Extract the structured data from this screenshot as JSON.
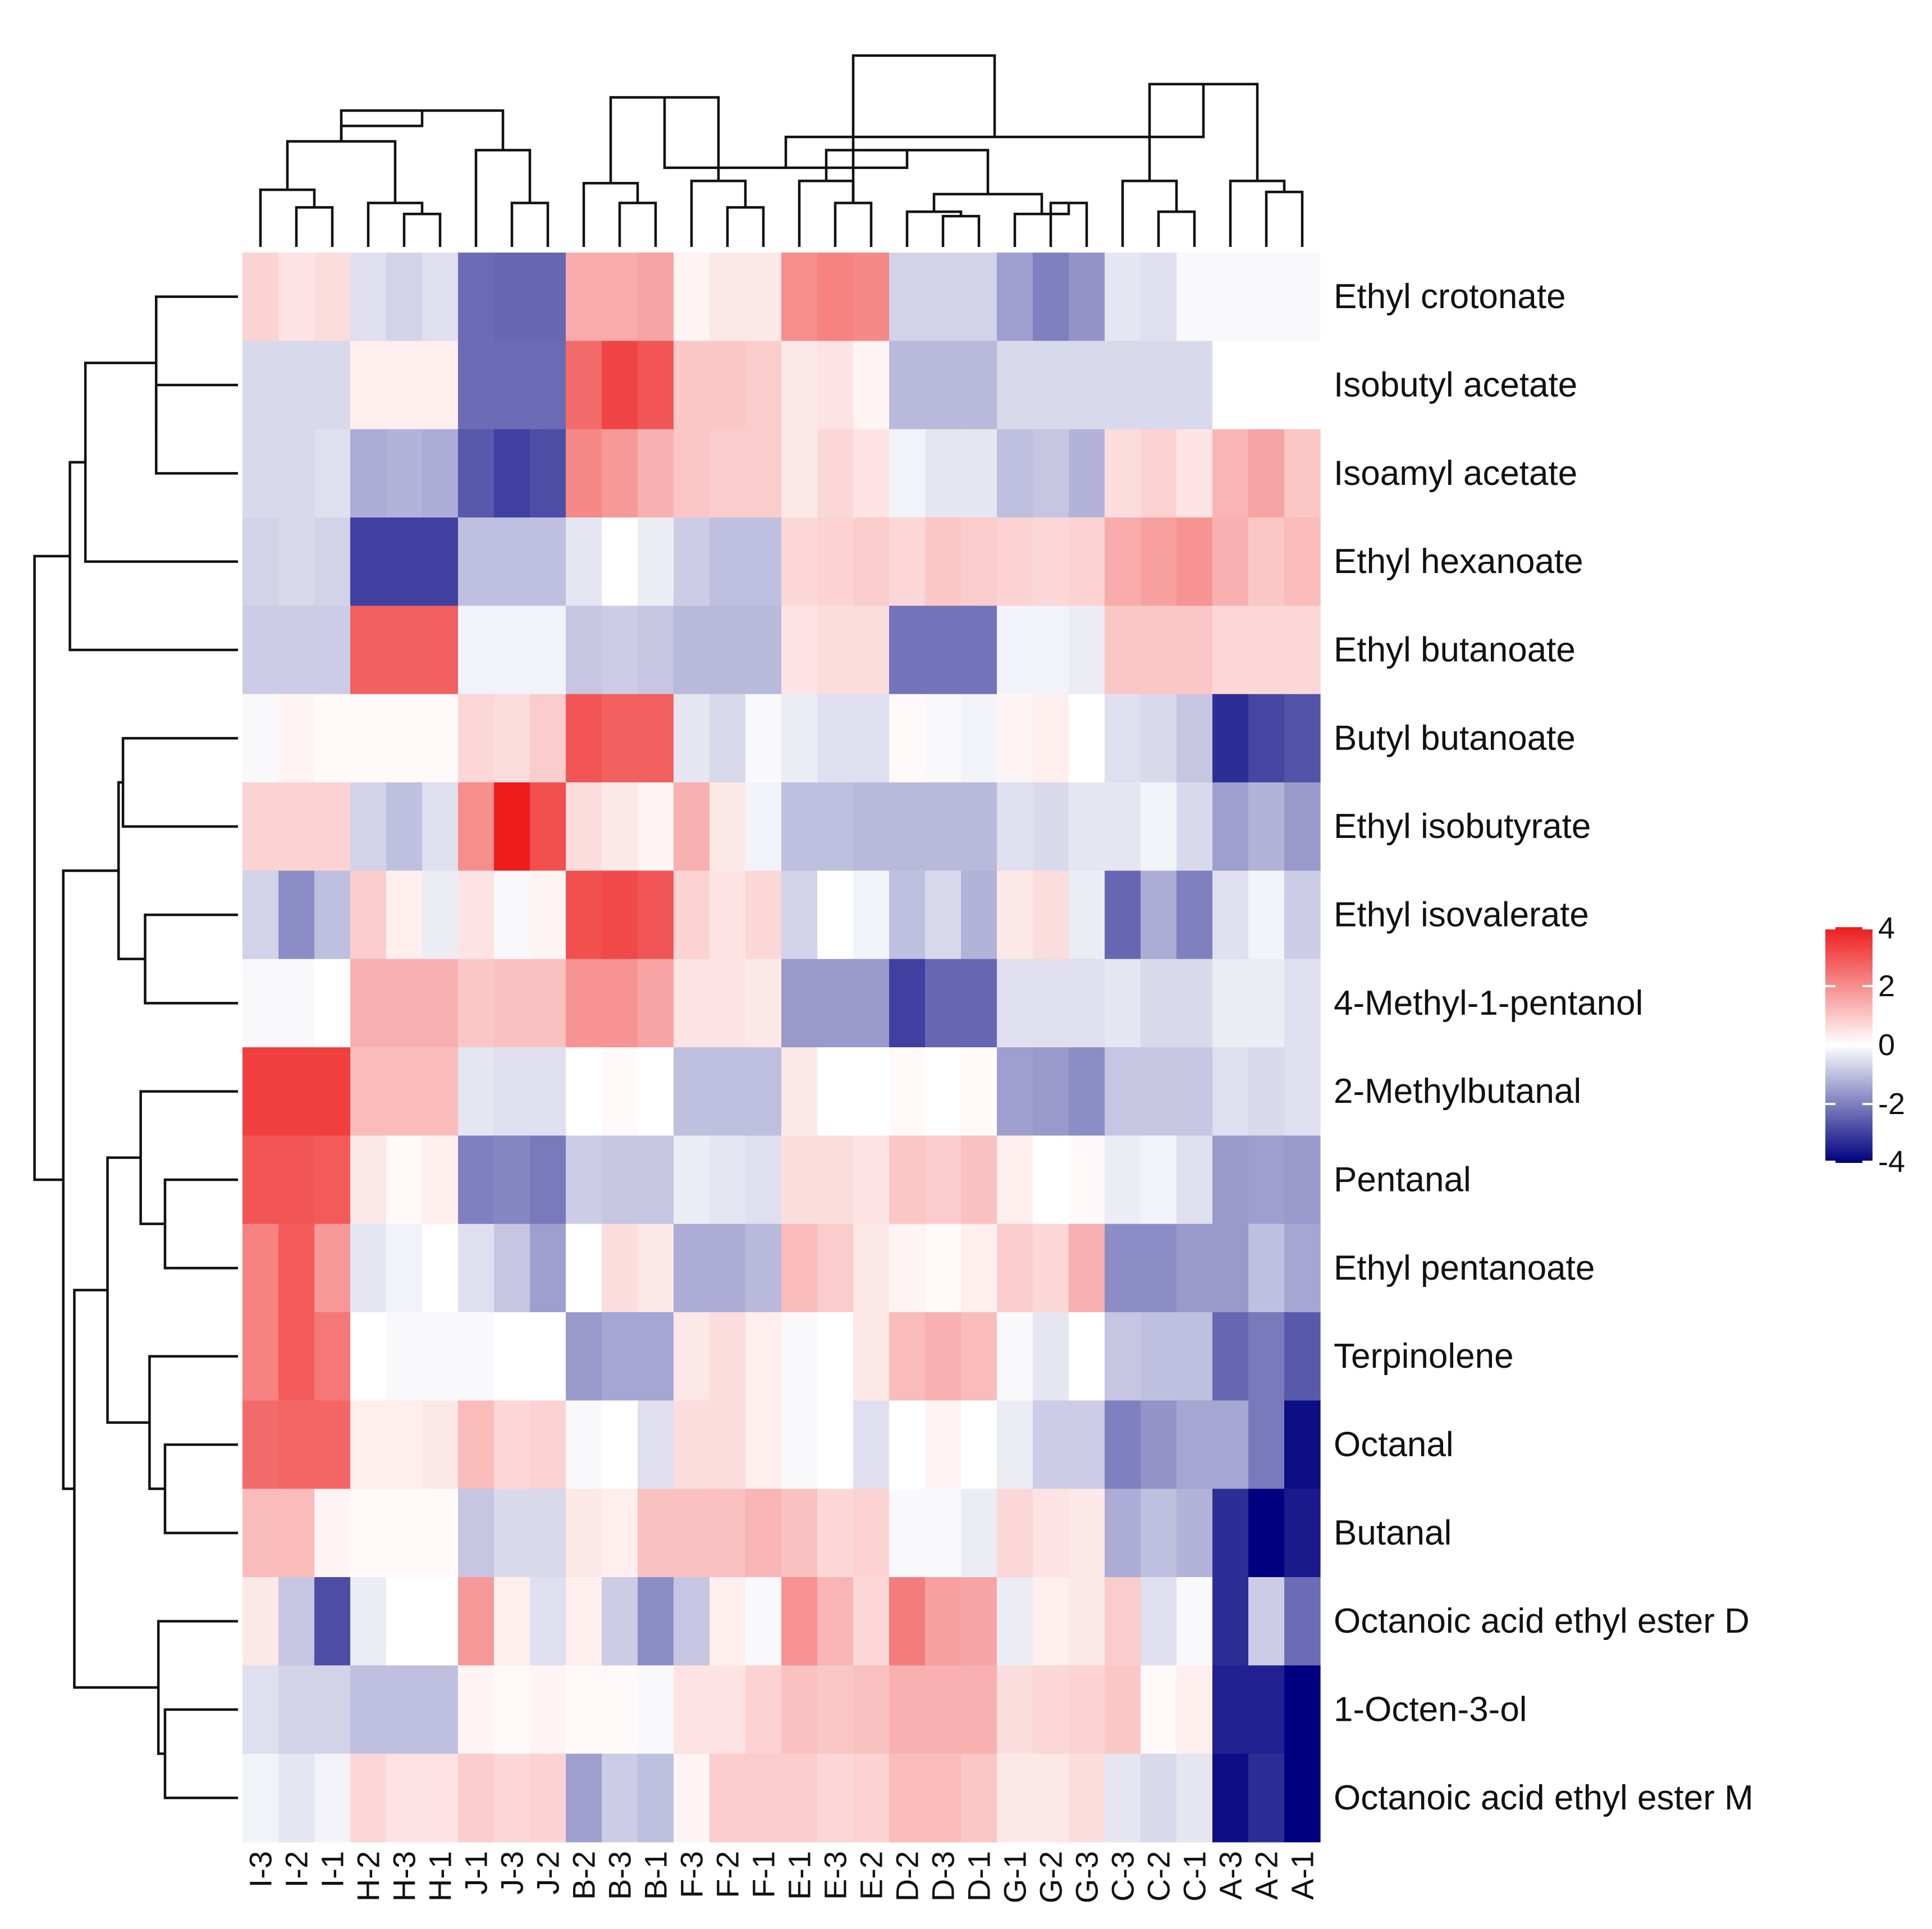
{
  "chart_data": {
    "type": "heatmap",
    "title": "",
    "xlabel": "",
    "ylabel": "",
    "columns": [
      "I-3",
      "I-2",
      "I-1",
      "H-2",
      "H-3",
      "H-1",
      "J-1",
      "J-3",
      "J-2",
      "B-2",
      "B-3",
      "B-1",
      "F-3",
      "F-2",
      "F-1",
      "E-1",
      "E-3",
      "E-2",
      "D-2",
      "D-3",
      "D-1",
      "G-1",
      "G-2",
      "G-3",
      "C-3",
      "C-2",
      "C-1",
      "A-3",
      "A-2",
      "A-1"
    ],
    "rows": [
      "Ethyl crotonate",
      "Isobutyl acetate",
      "Isoamyl acetate",
      "Ethyl hexanoate",
      "Ethyl butanoate",
      "Butyl butanoate",
      "Ethyl isobutyrate",
      "Ethyl isovalerate",
      "4-Methyl-1-pentanol",
      "2-Methylbutanal",
      "Pentanal",
      "Ethyl pentanoate",
      "Terpinolene",
      "Octanal",
      "Butanal",
      "Octanoic acid ethyl ester D",
      "1-Octen-3-ol",
      "Octanoic acid ethyl ester M"
    ],
    "values": [
      [
        0.8,
        0.5,
        0.6,
        -0.5,
        -0.7,
        -0.5,
        -2.3,
        -2.4,
        -2.4,
        1.5,
        1.5,
        1.6,
        0.2,
        0.4,
        0.4,
        2.0,
        2.2,
        2.1,
        -0.7,
        -0.7,
        -0.7,
        -1.5,
        -2.0,
        -1.7,
        -0.4,
        -0.5,
        -0.1,
        -0.1,
        -0.1,
        -0.1
      ],
      [
        -0.6,
        -0.6,
        -0.6,
        0.3,
        0.3,
        0.3,
        -2.3,
        -2.3,
        -2.3,
        2.6,
        3.3,
        3.0,
        1.0,
        1.0,
        0.9,
        0.4,
        0.5,
        0.2,
        -1.1,
        -1.1,
        -1.1,
        -0.6,
        -0.6,
        -0.6,
        -0.6,
        -0.6,
        -0.6,
        0.0,
        0.0,
        0.0
      ],
      [
        -0.6,
        -0.6,
        -0.5,
        -1.3,
        -1.2,
        -1.3,
        -2.6,
        -3.0,
        -2.8,
        2.1,
        1.8,
        1.4,
        1.0,
        0.9,
        0.9,
        0.4,
        0.7,
        0.5,
        -0.2,
        -0.4,
        -0.4,
        -1.0,
        -0.9,
        -1.2,
        0.6,
        0.8,
        0.5,
        1.3,
        1.6,
        1.0
      ],
      [
        -0.7,
        -0.6,
        -0.7,
        -3.0,
        -3.0,
        -3.0,
        -1.0,
        -1.0,
        -1.0,
        -0.4,
        0.0,
        -0.3,
        -0.8,
        -1.0,
        -1.0,
        0.7,
        0.8,
        0.9,
        0.7,
        1.0,
        0.9,
        0.8,
        0.7,
        0.8,
        1.5,
        1.7,
        1.9,
        1.4,
        1.0,
        1.2
      ],
      [
        -0.8,
        -0.8,
        -0.8,
        2.8,
        2.8,
        2.8,
        -0.2,
        -0.2,
        -0.2,
        -0.9,
        -0.8,
        -0.9,
        -1.1,
        -1.1,
        -1.1,
        0.5,
        0.6,
        0.6,
        -2.2,
        -2.2,
        -2.2,
        -0.2,
        -0.2,
        -0.3,
        1.0,
        1.0,
        1.0,
        0.7,
        0.7,
        0.7
      ],
      [
        -0.1,
        0.2,
        0.1,
        0.1,
        0.1,
        0.1,
        0.7,
        0.6,
        0.9,
        3.0,
        2.8,
        2.8,
        -0.4,
        -0.6,
        -0.1,
        -0.3,
        -0.5,
        -0.5,
        0.1,
        -0.1,
        -0.2,
        0.2,
        0.3,
        0.0,
        -0.5,
        -0.6,
        -0.9,
        -3.3,
        -2.9,
        -2.7
      ],
      [
        0.8,
        0.8,
        0.8,
        -0.7,
        -1.0,
        -0.5,
        2.0,
        4.0,
        3.1,
        0.6,
        0.4,
        0.2,
        1.4,
        0.4,
        -0.2,
        -1.0,
        -1.0,
        -1.1,
        -1.1,
        -1.1,
        -1.1,
        -0.5,
        -0.6,
        -0.4,
        -0.4,
        -0.2,
        -0.6,
        -1.5,
        -1.2,
        -1.6
      ],
      [
        -0.7,
        -1.8,
        -1.0,
        0.9,
        0.3,
        -0.3,
        0.5,
        -0.1,
        0.2,
        3.1,
        3.2,
        3.0,
        0.8,
        0.5,
        0.7,
        -0.7,
        0.0,
        -0.2,
        -1.0,
        -0.6,
        -1.2,
        0.4,
        0.6,
        -0.3,
        -2.4,
        -1.3,
        -2.0,
        -0.5,
        -0.2,
        -0.8
      ],
      [
        -0.1,
        -0.1,
        0.0,
        1.4,
        1.4,
        1.4,
        1.0,
        1.1,
        1.1,
        1.9,
        1.9,
        1.6,
        0.5,
        0.5,
        0.4,
        -1.6,
        -1.6,
        -1.6,
        -3.0,
        -2.4,
        -2.4,
        -0.5,
        -0.5,
        -0.5,
        -0.4,
        -0.6,
        -0.6,
        -0.3,
        -0.3,
        -0.5
      ],
      [
        3.4,
        3.4,
        3.4,
        1.2,
        1.2,
        1.2,
        -0.4,
        -0.5,
        -0.5,
        0.0,
        0.1,
        0.0,
        -1.0,
        -1.0,
        -1.0,
        0.4,
        0.0,
        0.0,
        0.1,
        0.0,
        0.1,
        -1.5,
        -1.6,
        -1.8,
        -0.9,
        -0.9,
        -0.9,
        -0.5,
        -0.6,
        -0.5
      ],
      [
        3.0,
        3.0,
        2.9,
        0.4,
        0.1,
        0.3,
        -2.0,
        -1.9,
        -2.1,
        -0.8,
        -0.9,
        -0.9,
        -0.3,
        -0.4,
        -0.5,
        0.6,
        0.6,
        0.5,
        1.0,
        0.9,
        1.1,
        0.3,
        0.0,
        0.1,
        -0.3,
        -0.2,
        -0.5,
        -1.6,
        -1.5,
        -1.6
      ],
      [
        2.2,
        2.9,
        1.8,
        -0.4,
        -0.2,
        0.0,
        -0.5,
        -0.9,
        -1.5,
        0.0,
        0.6,
        0.4,
        -1.3,
        -1.3,
        -1.1,
        1.2,
        0.9,
        0.4,
        0.2,
        0.1,
        0.3,
        0.9,
        0.7,
        1.4,
        -1.8,
        -1.8,
        -1.6,
        -1.6,
        -1.0,
        -1.4
      ],
      [
        2.2,
        2.9,
        2.4,
        0.0,
        -0.1,
        -0.1,
        -0.1,
        0.0,
        0.0,
        -1.6,
        -1.4,
        -1.4,
        0.4,
        0.6,
        0.3,
        -0.1,
        0.0,
        0.4,
        1.2,
        1.4,
        1.2,
        -0.1,
        -0.4,
        0.0,
        -0.9,
        -1.0,
        -1.0,
        -2.4,
        -2.1,
        -2.6
      ],
      [
        2.6,
        2.7,
        2.7,
        0.3,
        0.3,
        0.4,
        1.2,
        0.7,
        0.8,
        -0.1,
        0.0,
        -0.5,
        0.6,
        0.6,
        0.3,
        -0.1,
        0.0,
        -0.5,
        0.0,
        0.2,
        0.0,
        -0.3,
        -0.8,
        -0.8,
        -2.0,
        -1.7,
        -1.4,
        -1.4,
        -2.1,
        -3.8
      ],
      [
        1.2,
        1.2,
        0.2,
        0.1,
        0.1,
        0.1,
        -0.9,
        -0.6,
        -0.6,
        0.4,
        0.3,
        1.1,
        1.1,
        1.1,
        1.3,
        1.1,
        0.7,
        0.8,
        -0.1,
        -0.1,
        -0.3,
        0.7,
        0.5,
        0.4,
        -1.3,
        -1.0,
        -1.2,
        -3.3,
        -4.0,
        -3.6
      ],
      [
        0.4,
        -0.9,
        -2.8,
        -0.3,
        0.0,
        0.0,
        1.8,
        0.3,
        -0.5,
        0.3,
        -0.8,
        -1.8,
        -0.9,
        0.3,
        -0.1,
        1.9,
        1.3,
        0.7,
        2.3,
        1.7,
        1.6,
        -0.3,
        0.3,
        0.4,
        0.9,
        -0.5,
        -0.1,
        -3.3,
        -0.8,
        -2.3
      ],
      [
        -0.5,
        -0.7,
        -0.7,
        -1.0,
        -1.0,
        -1.0,
        0.2,
        0.1,
        0.2,
        0.1,
        0.1,
        -0.1,
        0.5,
        0.5,
        0.8,
        1.1,
        1.0,
        1.1,
        1.4,
        1.4,
        1.4,
        0.6,
        0.7,
        0.8,
        1.0,
        0.1,
        0.3,
        -3.5,
        -3.5,
        -4.0
      ],
      [
        -0.2,
        -0.4,
        -0.2,
        0.7,
        0.5,
        0.5,
        0.9,
        0.7,
        0.8,
        -1.5,
        -0.8,
        -1.0,
        0.2,
        0.9,
        0.9,
        0.9,
        0.7,
        0.8,
        1.2,
        1.2,
        1.0,
        0.4,
        0.4,
        0.6,
        -0.4,
        -0.6,
        -0.4,
        -3.8,
        -3.3,
        -4.0
      ]
    ],
    "color_scale": {
      "low": "#000080",
      "mid": "#ffffff",
      "high": "#ee1c1c",
      "min": -4,
      "max": 4
    },
    "legend": {
      "ticks": [
        "4",
        "2",
        "0",
        "-2",
        "-4"
      ],
      "tick_values": [
        4,
        2,
        0,
        -2,
        -4
      ],
      "placement": "right"
    },
    "column_dendrogram": [
      [
        1,
        2,
        0.18
      ],
      [
        0,
        -1,
        0.26
      ],
      [
        4,
        5,
        0.15
      ],
      [
        3,
        -3,
        0.2
      ],
      [
        -4,
        -2,
        0.48
      ],
      [
        7,
        8,
        0.2
      ],
      [
        6,
        -6,
        0.44
      ],
      [
        -5,
        -7,
        0.62
      ],
      [
        -8,
        -5,
        0.55
      ],
      [
        10,
        11,
        0.2
      ],
      [
        9,
        -10,
        0.29
      ],
      [
        13,
        14,
        0.18
      ],
      [
        12,
        -12,
        0.3
      ],
      [
        -11,
        -13,
        0.68
      ],
      [
        16,
        17,
        0.2
      ],
      [
        15,
        -15,
        0.3
      ],
      [
        19,
        20,
        0.14
      ],
      [
        18,
        -17,
        0.16
      ],
      [
        22,
        23,
        0.2
      ],
      [
        21,
        -19,
        0.15
      ],
      [
        -18,
        -20,
        0.24
      ],
      [
        -16,
        -21,
        0.44
      ],
      [
        -22,
        -14,
        0.36
      ],
      [
        25,
        26,
        0.16
      ],
      [
        24,
        -24,
        0.3
      ],
      [
        28,
        29,
        0.25
      ],
      [
        27,
        -26,
        0.3
      ],
      [
        -25,
        -27,
        0.74
      ],
      [
        -23,
        -28,
        0.5
      ],
      [
        -15,
        -29,
        0.87
      ]
    ],
    "row_dendrogram": [
      [
        1,
        2,
        0.37
      ],
      [
        0,
        -1,
        0.37
      ],
      [
        3,
        -2,
        0.69
      ],
      [
        4,
        -3,
        0.76
      ],
      [
        5,
        6,
        0.52
      ],
      [
        7,
        8,
        0.42
      ],
      [
        -5,
        -6,
        0.54
      ],
      [
        10,
        11,
        0.33
      ],
      [
        9,
        -8,
        0.44
      ],
      [
        13,
        14,
        0.33
      ],
      [
        12,
        -10,
        0.4
      ],
      [
        -9,
        -11,
        0.59
      ],
      [
        16,
        17,
        0.33
      ],
      [
        15,
        -13,
        0.36
      ],
      [
        -12,
        -14,
        0.74
      ],
      [
        -7,
        -15,
        0.79
      ],
      [
        -4,
        -16,
        0.92
      ]
    ]
  }
}
